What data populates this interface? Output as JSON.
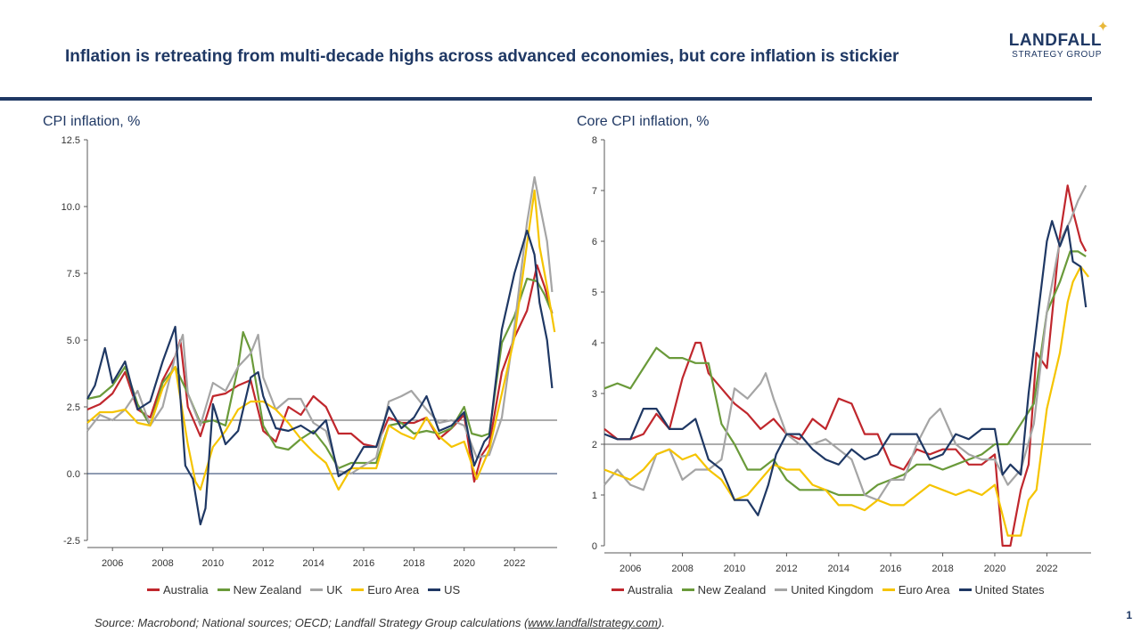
{
  "header": {
    "title": "Inflation is retreating from multi-decade highs across advanced economies, but core inflation is stickier",
    "logo_main": "LANDFALL",
    "logo_sub": "STRATEGY GROUP"
  },
  "footer": {
    "source_prefix": "Source: Macrobond; National sources; OECD; Landfall Strategy Group calculations (",
    "source_link": "www.landfallstrategy.com",
    "source_suffix": ").",
    "page_number": "1"
  },
  "colors": {
    "Australia": "#c0272d",
    "New Zealand": "#6a9a3a",
    "UK": "#a5a5a5",
    "United Kingdom": "#a5a5a5",
    "Euro Area": "#f5c400",
    "US": "#1f3864",
    "United States": "#1f3864"
  },
  "chart_data": [
    {
      "type": "line",
      "title": "CPI inflation, %",
      "xlim": [
        2005.0,
        2023.7
      ],
      "ylim": [
        -2.5,
        12.5
      ],
      "yticks": [
        "12.5",
        "10.0",
        "7.5",
        "5.0",
        "2.5",
        "0.0",
        "-2.5"
      ],
      "ytick_values": [
        12.5,
        10.0,
        7.5,
        5.0,
        2.5,
        0.0,
        -2.5
      ],
      "xticks": [
        "2006",
        "2008",
        "2010",
        "2012",
        "2014",
        "2016",
        "2018",
        "2020",
        "2022"
      ],
      "xtick_values": [
        2006,
        2008,
        2010,
        2012,
        2014,
        2016,
        2018,
        2020,
        2022
      ],
      "reference_line": 2.0,
      "series": [
        {
          "name": "Australia",
          "x": [
            2005.0,
            2005.5,
            2006.0,
            2006.5,
            2007.0,
            2007.5,
            2008.0,
            2008.5,
            2008.7,
            2009.0,
            2009.5,
            2010.0,
            2010.5,
            2011.0,
            2011.5,
            2012.0,
            2012.5,
            2013.0,
            2013.5,
            2014.0,
            2014.5,
            2015.0,
            2015.5,
            2016.0,
            2016.5,
            2017.0,
            2017.5,
            2018.0,
            2018.5,
            2019.0,
            2019.5,
            2020.0,
            2020.4,
            2020.7,
            2021.0,
            2021.5,
            2022.0,
            2022.5,
            2022.9,
            2023.2,
            2023.5
          ],
          "values": [
            2.4,
            2.6,
            3.0,
            3.8,
            2.4,
            2.1,
            3.5,
            4.4,
            5.0,
            2.5,
            1.4,
            2.9,
            3.0,
            3.3,
            3.5,
            1.6,
            1.2,
            2.5,
            2.2,
            2.9,
            2.5,
            1.5,
            1.5,
            1.1,
            1.0,
            2.1,
            1.9,
            1.9,
            2.1,
            1.3,
            1.7,
            2.2,
            -0.3,
            0.7,
            1.1,
            3.8,
            5.1,
            6.1,
            7.8,
            7.0,
            6.0
          ]
        },
        {
          "name": "New Zealand",
          "x": [
            2005.0,
            2005.5,
            2006.0,
            2006.5,
            2007.0,
            2007.5,
            2008.0,
            2008.5,
            2009.0,
            2009.5,
            2010.0,
            2010.5,
            2011.0,
            2011.2,
            2011.5,
            2012.0,
            2012.5,
            2013.0,
            2013.5,
            2014.0,
            2014.5,
            2015.0,
            2015.5,
            2016.0,
            2016.5,
            2017.0,
            2017.5,
            2018.0,
            2018.5,
            2019.0,
            2019.5,
            2020.0,
            2020.3,
            2020.7,
            2021.0,
            2021.5,
            2022.0,
            2022.5,
            2022.9,
            2023.2,
            2023.5
          ],
          "values": [
            2.8,
            2.9,
            3.3,
            4.0,
            2.6,
            1.8,
            3.4,
            4.0,
            3.0,
            1.9,
            2.0,
            1.8,
            4.0,
            5.3,
            4.6,
            1.8,
            1.0,
            0.9,
            1.3,
            1.6,
            1.0,
            0.2,
            0.4,
            0.4,
            0.4,
            1.8,
            1.9,
            1.5,
            1.6,
            1.5,
            1.7,
            2.5,
            1.5,
            1.4,
            1.5,
            4.9,
            5.9,
            7.3,
            7.2,
            6.7,
            6.0
          ]
        },
        {
          "name": "UK",
          "x": [
            2005.0,
            2005.5,
            2006.0,
            2006.5,
            2007.0,
            2007.5,
            2008.0,
            2008.5,
            2008.8,
            2009.0,
            2009.5,
            2010.0,
            2010.5,
            2011.0,
            2011.5,
            2011.8,
            2012.0,
            2012.5,
            2013.0,
            2013.5,
            2014.0,
            2014.5,
            2015.0,
            2015.5,
            2016.0,
            2016.5,
            2017.0,
            2017.5,
            2017.9,
            2018.5,
            2019.0,
            2019.5,
            2020.0,
            2020.5,
            2021.0,
            2021.5,
            2022.0,
            2022.5,
            2022.8,
            2023.0,
            2023.3,
            2023.5
          ],
          "values": [
            1.6,
            2.2,
            2.0,
            2.4,
            3.1,
            1.8,
            2.5,
            4.4,
            5.2,
            3.0,
            1.8,
            3.4,
            3.1,
            4.0,
            4.5,
            5.2,
            3.6,
            2.4,
            2.8,
            2.8,
            1.9,
            1.6,
            0.1,
            0.0,
            0.3,
            0.6,
            2.7,
            2.9,
            3.1,
            2.4,
            1.9,
            2.0,
            1.8,
            0.6,
            0.7,
            2.1,
            5.5,
            9.4,
            11.1,
            10.1,
            8.7,
            6.8
          ]
        },
        {
          "name": "Euro Area",
          "x": [
            2005.0,
            2005.5,
            2006.0,
            2006.5,
            2007.0,
            2007.5,
            2008.0,
            2008.5,
            2009.0,
            2009.3,
            2009.5,
            2010.0,
            2010.5,
            2011.0,
            2011.5,
            2012.0,
            2012.5,
            2013.0,
            2013.5,
            2014.0,
            2014.5,
            2015.0,
            2015.5,
            2016.0,
            2016.5,
            2017.0,
            2017.5,
            2018.0,
            2018.5,
            2019.0,
            2019.5,
            2020.0,
            2020.5,
            2021.0,
            2021.5,
            2022.0,
            2022.5,
            2022.8,
            2023.0,
            2023.3,
            2023.6
          ],
          "values": [
            1.9,
            2.3,
            2.3,
            2.4,
            1.9,
            1.8,
            3.2,
            4.0,
            1.1,
            -0.3,
            -0.6,
            1.0,
            1.6,
            2.4,
            2.7,
            2.7,
            2.4,
            1.9,
            1.3,
            0.8,
            0.4,
            -0.6,
            0.2,
            0.2,
            0.2,
            1.8,
            1.5,
            1.3,
            2.1,
            1.4,
            1.0,
            1.2,
            -0.2,
            0.9,
            3.0,
            5.1,
            8.6,
            10.6,
            8.5,
            7.0,
            5.3
          ]
        },
        {
          "name": "US",
          "x": [
            2005.0,
            2005.3,
            2005.7,
            2006.0,
            2006.5,
            2007.0,
            2007.5,
            2008.0,
            2008.5,
            2008.9,
            2009.2,
            2009.5,
            2009.7,
            2010.0,
            2010.5,
            2011.0,
            2011.5,
            2011.8,
            2012.0,
            2012.5,
            2013.0,
            2013.5,
            2014.0,
            2014.5,
            2015.0,
            2015.5,
            2016.0,
            2016.5,
            2017.0,
            2017.5,
            2018.0,
            2018.5,
            2019.0,
            2019.5,
            2020.0,
            2020.4,
            2020.8,
            2021.0,
            2021.5,
            2022.0,
            2022.5,
            2022.8,
            2023.0,
            2023.3,
            2023.5
          ],
          "values": [
            2.8,
            3.3,
            4.7,
            3.4,
            4.2,
            2.4,
            2.7,
            4.2,
            5.5,
            0.3,
            -0.2,
            -1.9,
            -1.3,
            2.6,
            1.1,
            1.6,
            3.6,
            3.8,
            2.9,
            1.7,
            1.6,
            1.8,
            1.5,
            2.0,
            -0.1,
            0.2,
            1.0,
            1.0,
            2.5,
            1.7,
            2.1,
            2.9,
            1.6,
            1.8,
            2.3,
            0.3,
            1.2,
            1.4,
            5.4,
            7.5,
            9.1,
            8.2,
            6.4,
            5.0,
            3.2
          ]
        }
      ]
    },
    {
      "type": "line",
      "title": "Core CPI inflation, %",
      "xlim": [
        2005.0,
        2023.7
      ],
      "ylim": [
        0,
        8
      ],
      "yticks": [
        "8",
        "7",
        "6",
        "5",
        "4",
        "3",
        "2",
        "1",
        "0"
      ],
      "ytick_values": [
        8,
        7,
        6,
        5,
        4,
        3,
        2,
        1,
        0
      ],
      "xticks": [
        "2006",
        "2008",
        "2010",
        "2012",
        "2014",
        "2016",
        "2018",
        "2020",
        "2022"
      ],
      "xtick_values": [
        2006,
        2008,
        2010,
        2012,
        2014,
        2016,
        2018,
        2020,
        2022
      ],
      "reference_line": 2.0,
      "series": [
        {
          "name": "Australia",
          "x": [
            2005.0,
            2005.5,
            2006.0,
            2006.5,
            2007.0,
            2007.5,
            2008.0,
            2008.5,
            2008.7,
            2009.0,
            2009.5,
            2010.0,
            2010.5,
            2011.0,
            2011.5,
            2012.0,
            2012.5,
            2013.0,
            2013.5,
            2014.0,
            2014.5,
            2015.0,
            2015.5,
            2016.0,
            2016.5,
            2017.0,
            2017.5,
            2018.0,
            2018.5,
            2019.0,
            2019.5,
            2020.0,
            2020.3,
            2020.6,
            2021.0,
            2021.3,
            2021.6,
            2022.0,
            2022.5,
            2022.8,
            2023.0,
            2023.3,
            2023.5
          ],
          "values": [
            2.3,
            2.1,
            2.1,
            2.2,
            2.6,
            2.3,
            3.3,
            4.0,
            4.0,
            3.4,
            3.1,
            2.8,
            2.6,
            2.3,
            2.5,
            2.2,
            2.1,
            2.5,
            2.3,
            2.9,
            2.8,
            2.2,
            2.2,
            1.6,
            1.5,
            1.9,
            1.8,
            1.9,
            1.9,
            1.6,
            1.6,
            1.8,
            0.0,
            0.0,
            1.1,
            1.6,
            3.8,
            3.5,
            6.1,
            7.1,
            6.6,
            6.0,
            5.8
          ]
        },
        {
          "name": "New Zealand",
          "x": [
            2005.0,
            2005.5,
            2006.0,
            2006.5,
            2007.0,
            2007.5,
            2008.0,
            2008.5,
            2009.0,
            2009.5,
            2010.0,
            2010.5,
            2011.0,
            2011.5,
            2012.0,
            2012.5,
            2013.0,
            2013.5,
            2014.0,
            2014.5,
            2015.0,
            2015.5,
            2016.0,
            2016.5,
            2017.0,
            2017.5,
            2018.0,
            2018.5,
            2019.0,
            2019.5,
            2020.0,
            2020.5,
            2021.0,
            2021.5,
            2022.0,
            2022.5,
            2022.9,
            2023.2,
            2023.5
          ],
          "values": [
            3.1,
            3.2,
            3.1,
            3.5,
            3.9,
            3.7,
            3.7,
            3.6,
            3.6,
            2.4,
            2.0,
            1.5,
            1.5,
            1.7,
            1.3,
            1.1,
            1.1,
            1.1,
            1.0,
            1.0,
            1.0,
            1.2,
            1.3,
            1.4,
            1.6,
            1.6,
            1.5,
            1.6,
            1.7,
            1.8,
            2.0,
            2.0,
            2.4,
            2.8,
            4.6,
            5.2,
            5.8,
            5.8,
            5.7
          ]
        },
        {
          "name": "United Kingdom",
          "x": [
            2005.0,
            2005.5,
            2006.0,
            2006.5,
            2007.0,
            2007.5,
            2008.0,
            2008.5,
            2009.0,
            2009.5,
            2010.0,
            2010.5,
            2011.0,
            2011.2,
            2011.5,
            2012.0,
            2012.5,
            2013.0,
            2013.5,
            2014.0,
            2014.5,
            2015.0,
            2015.5,
            2016.0,
            2016.5,
            2017.0,
            2017.5,
            2017.9,
            2018.5,
            2019.0,
            2019.5,
            2020.0,
            2020.5,
            2021.0,
            2021.5,
            2022.0,
            2022.5,
            2022.9,
            2023.2,
            2023.5
          ],
          "values": [
            1.2,
            1.5,
            1.2,
            1.1,
            1.8,
            1.9,
            1.3,
            1.5,
            1.5,
            1.7,
            3.1,
            2.9,
            3.2,
            3.4,
            2.9,
            2.2,
            2.0,
            2.0,
            2.1,
            1.9,
            1.7,
            1.0,
            0.9,
            1.3,
            1.3,
            2.0,
            2.5,
            2.7,
            2.0,
            1.8,
            1.7,
            1.7,
            1.2,
            1.5,
            2.4,
            4.6,
            6.0,
            6.4,
            6.8,
            7.1
          ]
        },
        {
          "name": "Euro Area",
          "x": [
            2005.0,
            2005.5,
            2006.0,
            2006.5,
            2007.0,
            2007.5,
            2008.0,
            2008.5,
            2009.0,
            2009.5,
            2010.0,
            2010.5,
            2011.0,
            2011.5,
            2012.0,
            2012.5,
            2013.0,
            2013.5,
            2014.0,
            2014.5,
            2015.0,
            2015.5,
            2016.0,
            2016.5,
            2017.0,
            2017.5,
            2018.0,
            2018.5,
            2019.0,
            2019.5,
            2020.0,
            2020.5,
            2021.0,
            2021.3,
            2021.6,
            2022.0,
            2022.5,
            2022.8,
            2023.0,
            2023.3,
            2023.6
          ],
          "values": [
            1.5,
            1.4,
            1.3,
            1.5,
            1.8,
            1.9,
            1.7,
            1.8,
            1.5,
            1.3,
            0.9,
            1.0,
            1.3,
            1.6,
            1.5,
            1.5,
            1.2,
            1.1,
            0.8,
            0.8,
            0.7,
            0.9,
            0.8,
            0.8,
            1.0,
            1.2,
            1.1,
            1.0,
            1.1,
            1.0,
            1.2,
            0.2,
            0.2,
            0.9,
            1.1,
            2.7,
            3.8,
            4.8,
            5.2,
            5.5,
            5.3
          ]
        },
        {
          "name": "United States",
          "x": [
            2005.0,
            2005.5,
            2006.0,
            2006.5,
            2007.0,
            2007.5,
            2008.0,
            2008.5,
            2009.0,
            2009.5,
            2010.0,
            2010.5,
            2010.9,
            2011.3,
            2011.6,
            2012.0,
            2012.5,
            2013.0,
            2013.5,
            2014.0,
            2014.5,
            2015.0,
            2015.5,
            2016.0,
            2016.5,
            2017.0,
            2017.5,
            2018.0,
            2018.5,
            2019.0,
            2019.5,
            2020.0,
            2020.3,
            2020.6,
            2021.0,
            2021.3,
            2021.6,
            2022.0,
            2022.2,
            2022.5,
            2022.8,
            2023.0,
            2023.3,
            2023.5
          ],
          "values": [
            2.2,
            2.1,
            2.1,
            2.7,
            2.7,
            2.3,
            2.3,
            2.5,
            1.7,
            1.5,
            0.9,
            0.9,
            0.6,
            1.2,
            1.8,
            2.2,
            2.2,
            1.9,
            1.7,
            1.6,
            1.9,
            1.7,
            1.8,
            2.2,
            2.2,
            2.2,
            1.7,
            1.8,
            2.2,
            2.1,
            2.3,
            2.3,
            1.4,
            1.6,
            1.4,
            3.0,
            4.3,
            6.0,
            6.4,
            5.9,
            6.3,
            5.6,
            5.5,
            4.7
          ]
        }
      ]
    }
  ]
}
